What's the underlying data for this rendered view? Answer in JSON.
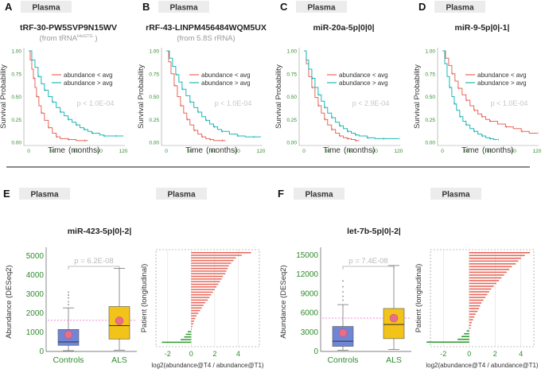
{
  "figure": {
    "sample_label": "Plasma",
    "legend_below": "abundance < avg",
    "legend_above": "abundance > avg",
    "colors": {
      "below": "#e8675a",
      "above": "#1fb6b6",
      "green": "#2e8b2e",
      "controls": "#6f86d6",
      "als": "#f2c318",
      "pink": "#e86f8a",
      "sig": "#b9b9b9"
    }
  },
  "km_axes": {
    "xlabel": "Time",
    "xlabel_units": "(months)",
    "ylabel": "Survival Probability"
  },
  "chart_data": [
    {
      "panel": "A",
      "type": "line",
      "title": "tRF-30-PW5SVP9N15WV",
      "subtitle_prefix": "(from tRNA",
      "subtitle_sup": "HisGTG",
      "subtitle_suffix": " )",
      "pvalue": "p < 1.0E-04",
      "xlabel": "Time (months)",
      "ylabel": "Survival Probability",
      "xticks": [
        0,
        30,
        60,
        90,
        120
      ],
      "yticks": [
        "0.00",
        "0.25",
        "0.50",
        "0.75",
        "1.00"
      ],
      "xlim": [
        0,
        120
      ],
      "ylim": [
        0,
        1
      ],
      "series": [
        {
          "name": "abundance < avg",
          "x": [
            0,
            2,
            4,
            6,
            8,
            10,
            13,
            16,
            20,
            25,
            30,
            35,
            40,
            50,
            60,
            70,
            75
          ],
          "y": [
            1,
            0.9,
            0.8,
            0.7,
            0.6,
            0.5,
            0.4,
            0.32,
            0.24,
            0.16,
            0.1,
            0.06,
            0.04,
            0.03,
            0.02,
            0.02,
            0.02
          ]
        },
        {
          "name": "abundance > avg",
          "x": [
            0,
            4,
            8,
            12,
            16,
            20,
            25,
            30,
            35,
            40,
            45,
            50,
            55,
            60,
            65,
            70,
            75,
            80,
            90,
            95,
            100,
            110,
            120
          ],
          "y": [
            1,
            0.9,
            0.82,
            0.72,
            0.64,
            0.57,
            0.5,
            0.44,
            0.38,
            0.33,
            0.29,
            0.25,
            0.22,
            0.19,
            0.16,
            0.14,
            0.12,
            0.1,
            0.08,
            0.07,
            0.07,
            0.07,
            0.07
          ]
        }
      ]
    },
    {
      "panel": "B",
      "type": "line",
      "title": "rRF-43-LINPM456484WQM5UX",
      "subtitle": "(from 5.8S rRNA)",
      "pvalue": "p < 1.0E-04",
      "xlabel": "Time (months)",
      "ylabel": "Survival Probability",
      "xticks": [
        0,
        30,
        60,
        90,
        120
      ],
      "yticks": [
        "0.00",
        "0.25",
        "0.50",
        "0.75",
        "1.00"
      ],
      "xlim": [
        0,
        120
      ],
      "ylim": [
        0,
        1
      ],
      "series": [
        {
          "name": "abundance < avg",
          "x": [
            0,
            3,
            6,
            10,
            14,
            18,
            22,
            26,
            30,
            35,
            40,
            45,
            50,
            55,
            60,
            70,
            75
          ],
          "y": [
            1,
            0.88,
            0.75,
            0.62,
            0.5,
            0.4,
            0.32,
            0.25,
            0.19,
            0.13,
            0.09,
            0.06,
            0.04,
            0.03,
            0.02,
            0.02,
            0.02
          ]
        },
        {
          "name": "abundance > avg",
          "x": [
            0,
            4,
            8,
            12,
            16,
            20,
            25,
            30,
            35,
            40,
            45,
            50,
            55,
            60,
            65,
            70,
            80,
            90,
            100,
            110,
            120
          ],
          "y": [
            1,
            0.92,
            0.83,
            0.74,
            0.66,
            0.58,
            0.51,
            0.44,
            0.38,
            0.33,
            0.28,
            0.24,
            0.2,
            0.17,
            0.14,
            0.12,
            0.09,
            0.07,
            0.06,
            0.06,
            0.06
          ]
        }
      ]
    },
    {
      "panel": "C",
      "type": "line",
      "title": "miR-20a-5p|0|0|",
      "pvalue": "p < 2.9E-04",
      "xlabel": "Time (months)",
      "ylabel": "Survival Probability",
      "xticks": [
        0,
        30,
        60,
        90,
        120
      ],
      "yticks": [
        "0.00",
        "0.25",
        "0.50",
        "0.75",
        "1.00"
      ],
      "xlim": [
        0,
        120
      ],
      "ylim": [
        0,
        1
      ],
      "series": [
        {
          "name": "abundance < avg",
          "x": [
            0,
            3,
            6,
            10,
            14,
            18,
            22,
            26,
            30,
            35,
            40,
            45,
            50,
            55,
            60,
            65,
            70
          ],
          "y": [
            1,
            0.86,
            0.72,
            0.6,
            0.49,
            0.4,
            0.32,
            0.25,
            0.19,
            0.14,
            0.1,
            0.07,
            0.05,
            0.04,
            0.03,
            0.02,
            0.02
          ]
        },
        {
          "name": "abundance > avg",
          "x": [
            0,
            3,
            6,
            10,
            14,
            18,
            22,
            26,
            30,
            35,
            40,
            45,
            50,
            55,
            60,
            65,
            70,
            80,
            90,
            100,
            110,
            120
          ],
          "y": [
            1,
            0.9,
            0.8,
            0.7,
            0.6,
            0.52,
            0.45,
            0.38,
            0.32,
            0.27,
            0.22,
            0.18,
            0.15,
            0.12,
            0.1,
            0.08,
            0.07,
            0.05,
            0.04,
            0.04,
            0.04,
            0.04
          ]
        }
      ]
    },
    {
      "panel": "D",
      "type": "line",
      "title": "miR-9-5p|0|-1|",
      "pvalue": "p < 1.0E-04",
      "xlabel": "Time (months)",
      "ylabel": "Survival Probability",
      "xticks": [
        0,
        30,
        60,
        90,
        120
      ],
      "yticks": [
        "0.00",
        "0.25",
        "0.50",
        "0.75",
        "1.00"
      ],
      "xlim": [
        0,
        120
      ],
      "ylim": [
        0,
        1
      ],
      "series": [
        {
          "name": "abundance < avg",
          "x": [
            0,
            4,
            8,
            12,
            16,
            20,
            25,
            30,
            35,
            40,
            45,
            50,
            55,
            60,
            70,
            80,
            90,
            100,
            110,
            120
          ],
          "y": [
            1,
            0.92,
            0.84,
            0.75,
            0.67,
            0.59,
            0.52,
            0.46,
            0.4,
            0.35,
            0.31,
            0.28,
            0.25,
            0.23,
            0.2,
            0.17,
            0.15,
            0.12,
            0.1,
            0.1
          ]
        },
        {
          "name": "abundance > avg",
          "x": [
            0,
            3,
            6,
            9,
            12,
            15,
            18,
            22,
            26,
            30,
            35,
            40,
            45,
            50,
            55,
            60,
            65,
            70
          ],
          "y": [
            1,
            0.86,
            0.72,
            0.6,
            0.5,
            0.42,
            0.35,
            0.28,
            0.23,
            0.19,
            0.15,
            0.12,
            0.09,
            0.07,
            0.05,
            0.04,
            0.03,
            0.03
          ]
        }
      ]
    },
    {
      "panel": "E",
      "type": "box",
      "title": "miR-423-5p|0|-2|",
      "pvalue": "p = 6.2E-08",
      "ylabel": "Abundance (DESeq2)",
      "categories": [
        "Controls",
        "ALS"
      ],
      "yticks": [
        0,
        1000,
        2000,
        3000,
        4000,
        5000
      ],
      "ylim": [
        0,
        5200
      ],
      "boxes": [
        {
          "name": "Controls",
          "whisker_low": 40,
          "q1": 320,
          "median": 500,
          "q3": 1150,
          "whisker_high": 2280,
          "mean": 880,
          "outliers": [
            2450,
            2600,
            2800,
            2950,
            3100
          ]
        },
        {
          "name": "ALS",
          "whisker_low": 70,
          "q1": 650,
          "median": 1350,
          "q3": 2350,
          "whisker_high": 4350,
          "mean": 1600,
          "outliers": []
        }
      ],
      "reference_line": 1630
    },
    {
      "panel": "E2",
      "type": "bar",
      "ylabel": "Patient (longitudinal)",
      "xlabel": "log2(abundance@T4 / abundance@T1)",
      "xticks": [
        -2,
        0,
        2,
        4
      ],
      "xlim": [
        -3,
        5.8
      ],
      "values": [
        5.1,
        4.3,
        3.8,
        3.6,
        3.4,
        3.2,
        3.1,
        3.0,
        2.9,
        2.7,
        2.6,
        2.45,
        2.3,
        2.15,
        2.0,
        1.85,
        1.7,
        1.55,
        1.4,
        1.2,
        1.05,
        0.9,
        0.75,
        0.6,
        0.45,
        0.35,
        0.25,
        0.18,
        0.1,
        0.05,
        -0.3,
        -0.45,
        -0.6,
        -0.9,
        -2.5
      ]
    },
    {
      "panel": "F",
      "type": "box",
      "title": "let-7b-5p|0|-2|",
      "pvalue": "p = 7.4E-08",
      "ylabel": "Abundance (DESeq2)",
      "categories": [
        "Controls",
        "ALS"
      ],
      "yticks": [
        0,
        3000,
        6000,
        9000,
        12000,
        15000
      ],
      "ylim": [
        0,
        15500
      ],
      "boxes": [
        {
          "name": "Controls",
          "whisker_low": 200,
          "q1": 800,
          "median": 1600,
          "q3": 3900,
          "whisker_high": 7300,
          "mean": 2900,
          "outliers": [
            8000,
            8600,
            9300,
            10100,
            11000
          ]
        },
        {
          "name": "ALS",
          "whisker_low": 300,
          "q1": 2000,
          "median": 4200,
          "q3": 6700,
          "whisker_high": 13400,
          "mean": 5200,
          "outliers": []
        }
      ],
      "reference_line": 5200
    },
    {
      "panel": "F2",
      "type": "bar",
      "ylabel": "Patient (longitudinal)",
      "xlabel": "log2(abundance@T4 / abundance@T1)",
      "xticks": [
        -2,
        0,
        2,
        4
      ],
      "xlim": [
        -3,
        5
      ],
      "values": [
        4.7,
        4.3,
        4.0,
        3.8,
        3.6,
        3.3,
        3.1,
        2.9,
        2.7,
        2.5,
        2.3,
        2.1,
        1.9,
        1.7,
        1.55,
        1.4,
        1.25,
        1.1,
        0.95,
        0.85,
        0.75,
        0.65,
        0.5,
        0.4,
        0.3,
        0.2,
        0.15,
        0.1,
        -0.2,
        -0.4,
        -0.6,
        -0.9,
        -3.3
      ]
    }
  ]
}
